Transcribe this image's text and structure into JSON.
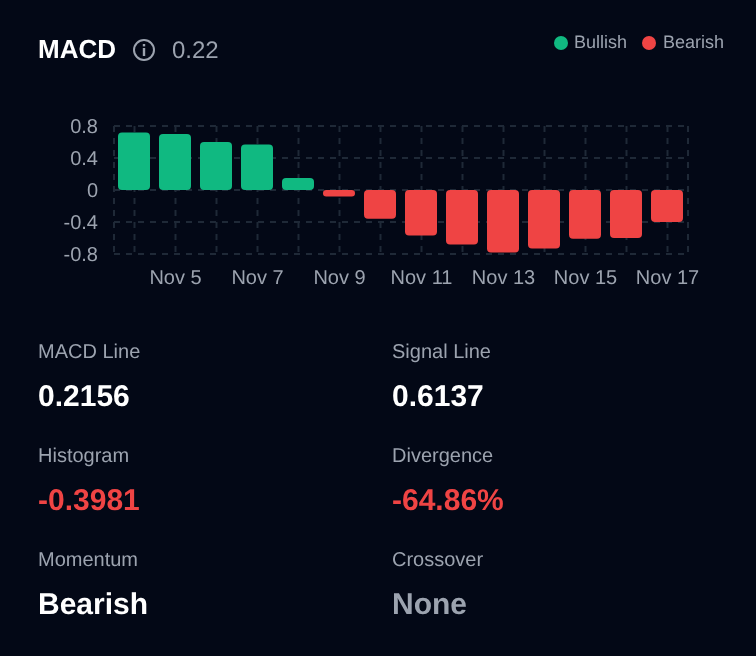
{
  "chart_data": [
    {
      "type": "bar",
      "title": "MACD",
      "subtitle": "0.22",
      "categories": [
        null,
        "Nov 5",
        null,
        "Nov 7",
        null,
        "Nov 9",
        null,
        "Nov 11",
        null,
        "Nov 13",
        null,
        "Nov 15",
        null,
        "Nov 17"
      ],
      "stacked": true,
      "series": [
        {
          "name": "Bullish",
          "color": "#10b981",
          "values": [
            0.72,
            0.7,
            0.6,
            0.57,
            0.15,
            null,
            null,
            null,
            null,
            null,
            null,
            null,
            null,
            null
          ]
        },
        {
          "name": "Bearish",
          "color": "#ef4444",
          "values": [
            null,
            null,
            null,
            null,
            null,
            -0.08,
            -0.36,
            -0.57,
            -0.68,
            -0.78,
            -0.73,
            -0.61,
            -0.6,
            -0.4
          ]
        }
      ],
      "ylim": [
        -0.8,
        0.8
      ],
      "yticks": [
        -0.8,
        -0.4,
        0,
        0.4,
        0.8
      ],
      "grid": true,
      "legend": "top right"
    },
    {
      "type": "other",
      "annotations": [
        "MACD Line",
        "0.2156",
        "Signal Line",
        "0.6137",
        "Histogram",
        "-0.3981",
        "Divergence",
        "-64.86%",
        "Momentum",
        "Bearish",
        "Crossover",
        "None"
      ],
      "colors": [
        "#9ca3af",
        "#ffffff",
        "#9ca3af",
        "#ffffff",
        "#9ca3af",
        "#ef4444",
        "#9ca3af",
        "#ef4444",
        "#9ca3af",
        "#ffffff",
        "#9ca3af",
        "#9ca3af"
      ]
    }
  ]
}
